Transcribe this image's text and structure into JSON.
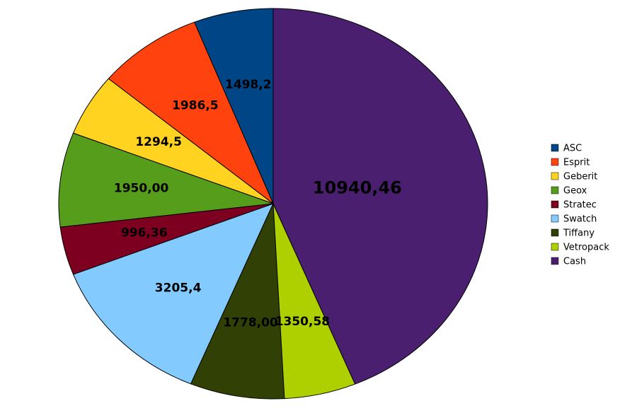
{
  "chart_data": {
    "type": "pie",
    "categories": [
      "ASC",
      "Esprit",
      "Geberit",
      "Geox",
      "Stratec",
      "Swatch",
      "Tiffany",
      "Vetropack",
      "Cash"
    ],
    "values": [
      1498.2,
      1986.5,
      1294.5,
      1950.0,
      996.36,
      3205.4,
      1778.0,
      1350.58,
      10940.46
    ],
    "value_labels": [
      "1498,2",
      "1986,5",
      "1294,5",
      "1950,00",
      "996,36",
      "3205,4",
      "1778,00",
      "1350,58",
      "10940,46"
    ],
    "colors": [
      "#004586",
      "#ff420e",
      "#ffd320",
      "#579d1c",
      "#7e0021",
      "#83caff",
      "#314004",
      "#aecf00",
      "#4b1f6f"
    ]
  }
}
